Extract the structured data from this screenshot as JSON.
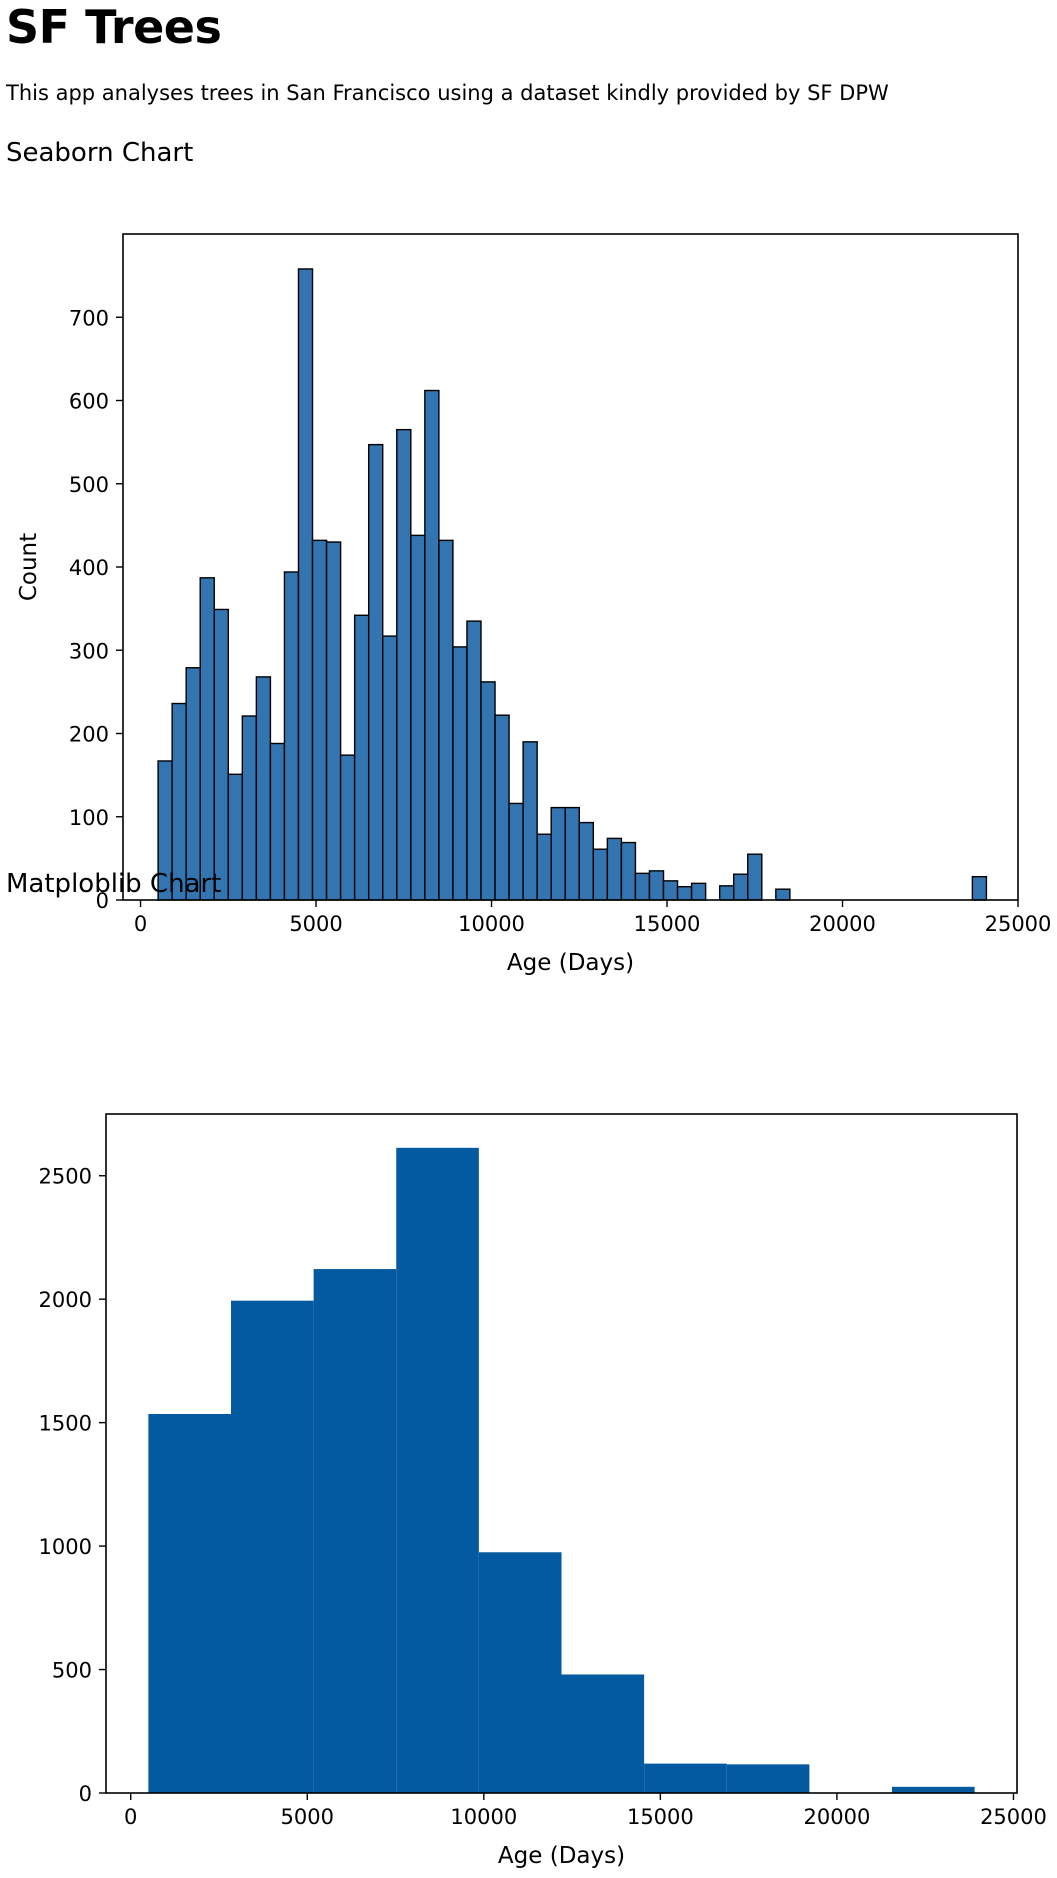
{
  "page": {
    "title": "SF Trees",
    "description": "This app analyses trees in San Francisco using a dataset kindly provided by SF DPW"
  },
  "sections": {
    "seaborn_title": "Seaborn Chart",
    "matplotlib_title": "Matploblib Chart"
  },
  "colors": {
    "seaborn_bar": "#3375b0",
    "matplotlib_bar": "#035aa0"
  },
  "chart_data": [
    {
      "type": "bar",
      "histogram": true,
      "title": "",
      "xlabel": "Age (Days)",
      "ylabel": "Count",
      "xlim": [
        -500,
        25000
      ],
      "ylim": [
        0,
        800
      ],
      "xticks": [
        0,
        5000,
        10000,
        15000,
        20000,
        25000
      ],
      "yticks": [
        0,
        100,
        200,
        300,
        400,
        500,
        600,
        700
      ],
      "grid": false,
      "bin_start": 500,
      "bin_width": 400,
      "values": [
        167,
        236,
        279,
        387,
        349,
        151,
        221,
        268,
        188,
        394,
        758,
        432,
        430,
        174,
        342,
        547,
        317,
        565,
        438,
        612,
        432,
        304,
        335,
        262,
        222,
        116,
        190,
        79,
        111,
        111,
        93,
        61,
        74,
        69,
        32,
        35,
        23,
        16,
        20,
        0,
        17,
        31,
        55,
        0,
        13,
        0,
        0,
        0,
        0,
        0,
        0,
        0,
        0,
        0,
        0,
        0,
        0,
        0,
        28
      ]
    },
    {
      "type": "bar",
      "histogram": true,
      "title": "",
      "xlabel": "Age (Days)",
      "ylabel": "",
      "xlim": [
        -700,
        25100
      ],
      "ylim": [
        0,
        2750
      ],
      "xticks": [
        0,
        5000,
        10000,
        15000,
        20000,
        25000
      ],
      "yticks": [
        0,
        500,
        1000,
        1500,
        2000,
        2500
      ],
      "grid": false,
      "bin_start": 500,
      "bin_width": 2340,
      "values": [
        1535,
        1994,
        2122,
        2613,
        975,
        480,
        119,
        116,
        0,
        25
      ]
    }
  ]
}
